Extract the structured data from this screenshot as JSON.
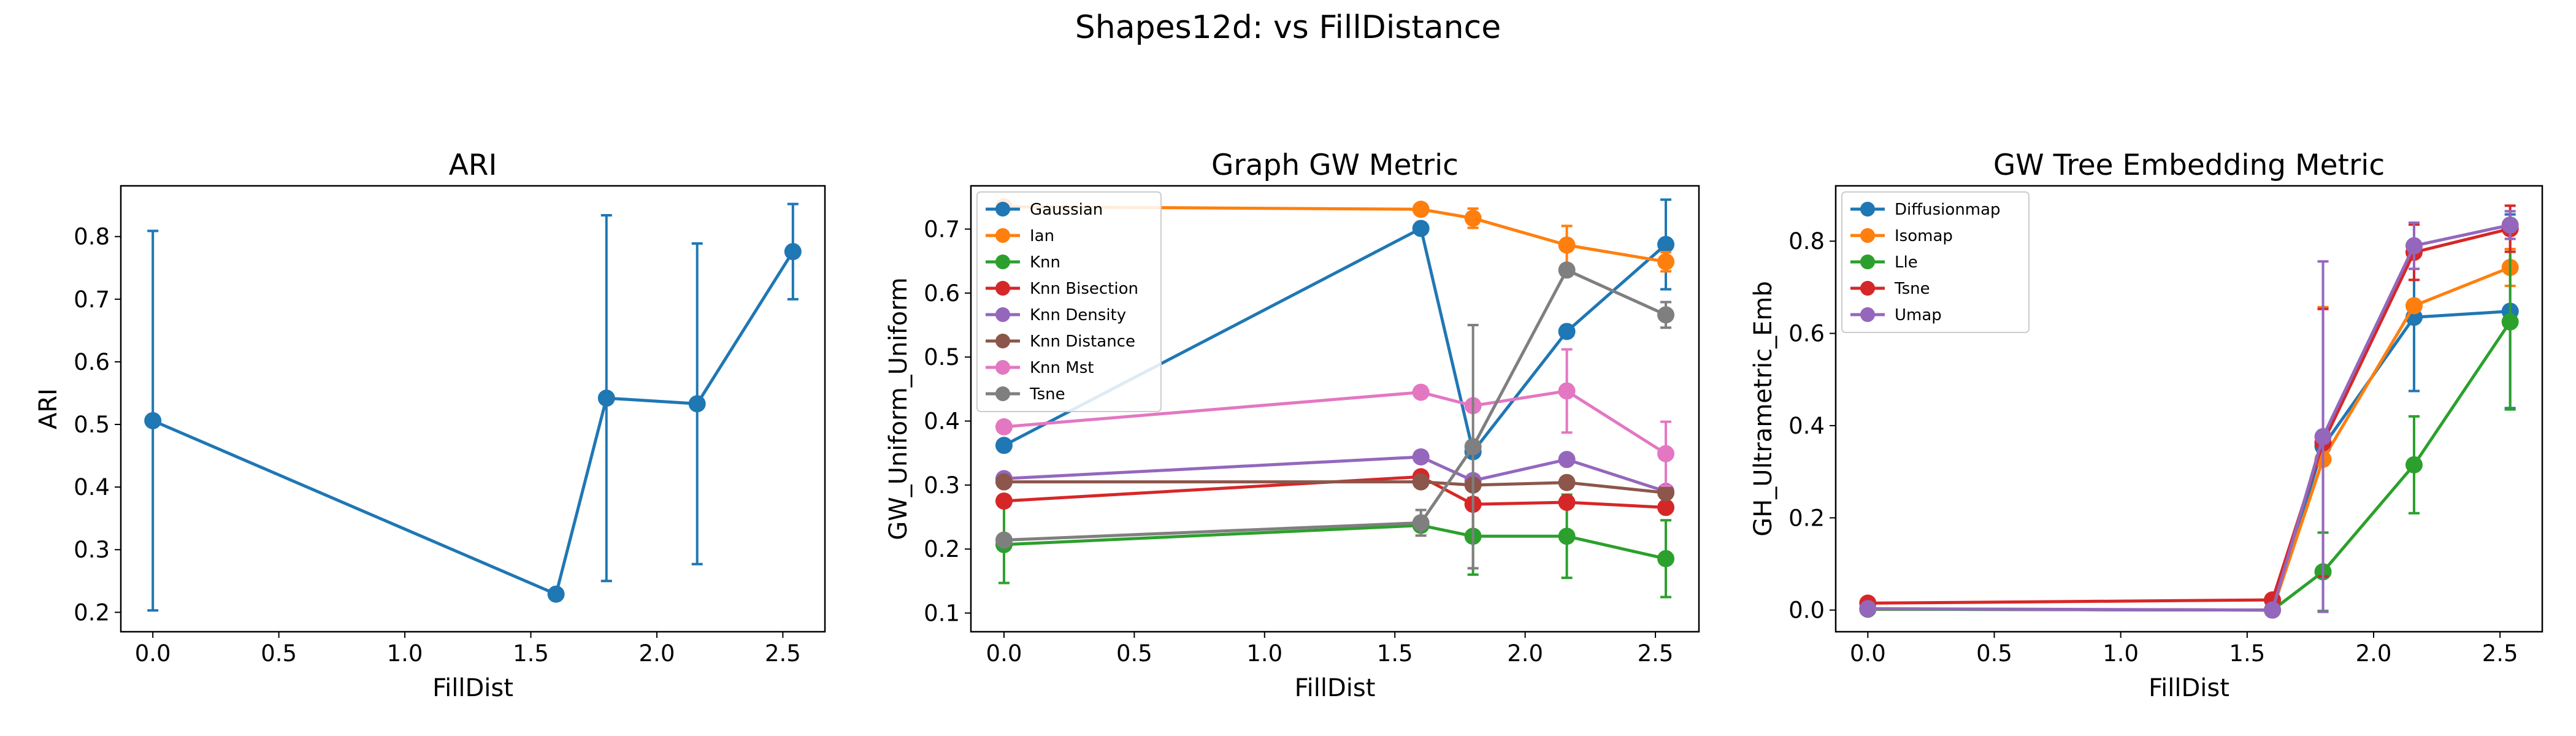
{
  "figure": {
    "suptitle": "Shapes12d: vs FillDistance"
  },
  "colors": {
    "blue": "#1f77b4",
    "orange": "#ff7f0e",
    "green": "#2ca02c",
    "red": "#d62728",
    "purple": "#9467bd",
    "brown": "#8c564b",
    "pink": "#e377c2",
    "gray": "#7f7f7f"
  },
  "chart_data": [
    {
      "type": "line",
      "title": "ARI",
      "xlabel": "FillDist",
      "ylabel": "ARI",
      "xlim": [
        -0.127,
        2.667
      ],
      "ylim": [
        0.169,
        0.881
      ],
      "xticks": [
        0.0,
        0.5,
        1.0,
        1.5,
        2.0,
        2.5
      ],
      "xtick_labels": [
        "0.0",
        "0.5",
        "1.0",
        "1.5",
        "2.0",
        "2.5"
      ],
      "yticks": [
        0.2,
        0.3,
        0.4,
        0.5,
        0.6,
        0.7,
        0.8
      ],
      "ytick_labels": [
        "0.2",
        "0.3",
        "0.4",
        "0.5",
        "0.6",
        "0.7",
        "0.8"
      ],
      "legend": null,
      "series": [
        {
          "color": "blue",
          "x": [
            0.0,
            1.6,
            1.8,
            2.16,
            2.54
          ],
          "y": [
            0.506,
            0.229,
            0.542,
            0.533,
            0.776
          ],
          "err": [
            0.303,
            0.0,
            0.292,
            0.256,
            0.076
          ]
        }
      ]
    },
    {
      "type": "line",
      "title": "Graph GW Metric",
      "xlabel": "FillDist",
      "ylabel": "GW_Uniform_Uniform",
      "xlim": [
        -0.127,
        2.667
      ],
      "ylim": [
        0.0708,
        0.7676
      ],
      "xticks": [
        0.0,
        0.5,
        1.0,
        1.5,
        2.0,
        2.5
      ],
      "xtick_labels": [
        "0.0",
        "0.5",
        "1.0",
        "1.5",
        "2.0",
        "2.5"
      ],
      "yticks": [
        0.1,
        0.2,
        0.3,
        0.4,
        0.5,
        0.6,
        0.7
      ],
      "ytick_labels": [
        "0.1",
        "0.2",
        "0.3",
        "0.4",
        "0.5",
        "0.6",
        "0.7"
      ],
      "legend": "upper-left",
      "series": [
        {
          "name": "Gaussian",
          "color": "blue",
          "x": [
            0.0,
            1.6,
            1.8,
            2.16,
            2.54
          ],
          "y": [
            0.362,
            0.701,
            0.352,
            0.54,
            0.676
          ],
          "err": [
            0.0,
            0.0,
            0.0,
            0.0,
            0.07
          ]
        },
        {
          "name": "Ian",
          "color": "orange",
          "x": [
            0.0,
            1.6,
            1.8,
            2.16,
            2.54
          ],
          "y": [
            0.735,
            0.731,
            0.717,
            0.675,
            0.649
          ],
          "err": [
            0.0,
            0.0,
            0.015,
            0.03,
            0.015
          ]
        },
        {
          "name": "Knn",
          "color": "green",
          "x": [
            0.0,
            1.6,
            1.8,
            2.16,
            2.54
          ],
          "y": [
            0.207,
            0.237,
            0.22,
            0.22,
            0.185
          ],
          "err": [
            0.06,
            0.0,
            0.06,
            0.065,
            0.06
          ]
        },
        {
          "name": "Knn Bisection",
          "color": "red",
          "x": [
            0.0,
            1.6,
            1.8,
            2.16,
            2.54
          ],
          "y": [
            0.275,
            0.313,
            0.27,
            0.273,
            0.265
          ],
          "err": [
            0.0,
            0.0,
            0.0,
            0.0,
            0.0
          ]
        },
        {
          "name": "Knn Density",
          "color": "purple",
          "x": [
            0.0,
            1.6,
            1.8,
            2.16,
            2.54
          ],
          "y": [
            0.31,
            0.344,
            0.307,
            0.34,
            0.29
          ],
          "err": [
            0.0,
            0.0,
            0.0,
            0.0,
            0.0
          ]
        },
        {
          "name": "Knn Distance",
          "color": "brown",
          "x": [
            0.0,
            1.6,
            1.8,
            2.16,
            2.54
          ],
          "y": [
            0.305,
            0.305,
            0.3,
            0.304,
            0.288
          ],
          "err": [
            0.0,
            0.0,
            0.0,
            0.0,
            0.0
          ]
        },
        {
          "name": "Knn Mst",
          "color": "pink",
          "x": [
            0.0,
            1.6,
            1.8,
            2.16,
            2.54
          ],
          "y": [
            0.391,
            0.445,
            0.424,
            0.447,
            0.349
          ],
          "err": [
            0.0,
            0.0,
            0.0,
            0.065,
            0.05
          ]
        },
        {
          "name": "Tsne",
          "color": "gray",
          "x": [
            0.0,
            1.6,
            1.8,
            2.16,
            2.54
          ],
          "y": [
            0.214,
            0.241,
            0.36,
            0.636,
            0.566
          ],
          "err": [
            0.0,
            0.02,
            0.19,
            0.0,
            0.02
          ]
        }
      ]
    },
    {
      "type": "line",
      "title": "GW Tree Embedding Metric",
      "xlabel": "FillDist",
      "ylabel": "GH_Ultrametric_Emb",
      "xlim": [
        -0.127,
        2.667
      ],
      "ylim": [
        -0.047,
        0.92
      ],
      "xticks": [
        0.0,
        0.5,
        1.0,
        1.5,
        2.0,
        2.5
      ],
      "xtick_labels": [
        "0.0",
        "0.5",
        "1.0",
        "1.5",
        "2.0",
        "2.5"
      ],
      "yticks": [
        0.0,
        0.2,
        0.4,
        0.6,
        0.8
      ],
      "ytick_labels": [
        "0.0",
        "0.2",
        "0.4",
        "0.6",
        "0.8"
      ],
      "legend": "upper-left",
      "series": [
        {
          "name": "Diffusionmap",
          "color": "blue",
          "x": [
            0.0,
            1.6,
            1.8,
            2.16,
            2.54
          ],
          "y": [
            0.002,
            0.0,
            0.355,
            0.635,
            0.648
          ],
          "err": [
            0.0,
            0.0,
            0.0,
            0.16,
            0.21
          ]
        },
        {
          "name": "Isomap",
          "color": "orange",
          "x": [
            0.0,
            1.6,
            1.8,
            2.16,
            2.54
          ],
          "y": [
            0.002,
            0.0,
            0.327,
            0.66,
            0.743
          ],
          "err": [
            0.0,
            0.0,
            0.33,
            0.0,
            0.04
          ]
        },
        {
          "name": "Lle",
          "color": "green",
          "x": [
            0.0,
            1.6,
            1.8,
            2.16,
            2.54
          ],
          "y": [
            0.002,
            0.0,
            0.083,
            0.315,
            0.625
          ],
          "err": [
            0.0,
            0.0,
            0.085,
            0.105,
            0.19
          ]
        },
        {
          "name": "Tsne",
          "color": "red",
          "x": [
            0.0,
            1.6,
            1.8,
            2.16,
            2.54
          ],
          "y": [
            0.015,
            0.022,
            0.363,
            0.776,
            0.827
          ],
          "err": [
            0.0,
            0.0,
            0.29,
            0.06,
            0.05
          ]
        },
        {
          "name": "Umap",
          "color": "purple",
          "x": [
            0.0,
            1.6,
            1.8,
            2.16,
            2.54
          ],
          "y": [
            0.003,
            0.0,
            0.376,
            0.79,
            0.835
          ],
          "err": [
            0.0,
            0.0,
            0.38,
            0.05,
            0.03
          ]
        }
      ]
    }
  ]
}
